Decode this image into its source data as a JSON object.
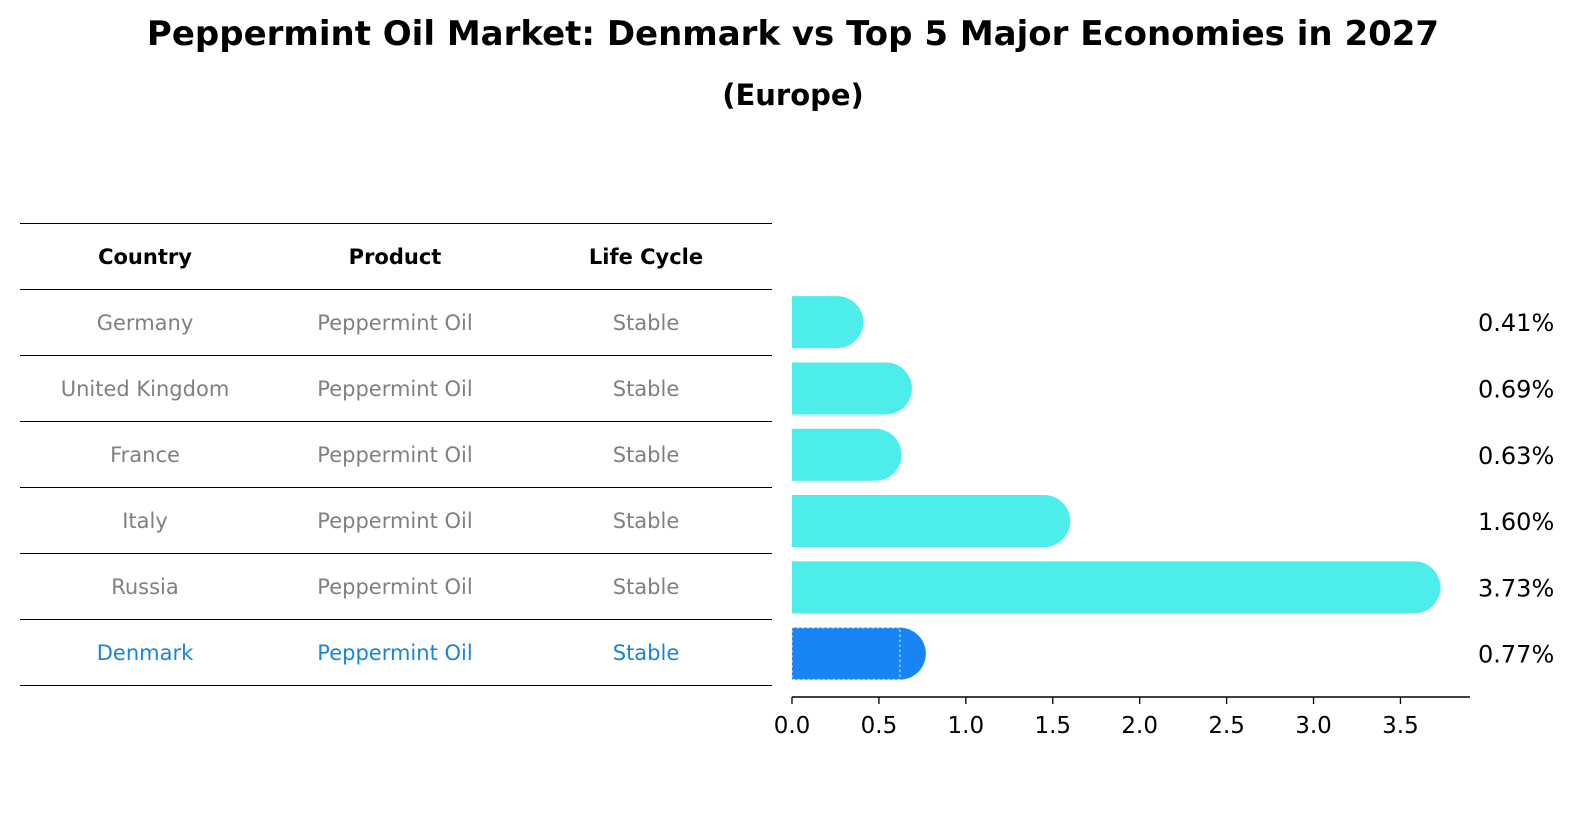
{
  "title": "Peppermint Oil Market: Denmark vs Top 5 Major Economies in 2027",
  "subtitle": "(Europe)",
  "table": {
    "headers": [
      "Country",
      "Product",
      "Life Cycle"
    ],
    "rows": [
      [
        "Germany",
        "Peppermint Oil",
        "Stable"
      ],
      [
        "United Kingdom",
        "Peppermint Oil",
        "Stable"
      ],
      [
        "France",
        "Peppermint Oil",
        "Stable"
      ],
      [
        "Italy",
        "Peppermint Oil",
        "Stable"
      ],
      [
        "Russia",
        "Peppermint Oil",
        "Stable"
      ],
      [
        "Denmark",
        "Peppermint Oil",
        "Stable"
      ]
    ]
  },
  "colors": {
    "bar": "#4deee9",
    "highlight": "#1985f5",
    "text_gray": "#808080",
    "text_highlight": "#1a85d6"
  },
  "chart_data": {
    "type": "bar",
    "orientation": "horizontal",
    "categories": [
      "Germany",
      "United Kingdom",
      "France",
      "Italy",
      "Russia",
      "Denmark"
    ],
    "values": [
      0.41,
      0.69,
      0.63,
      1.6,
      3.73,
      0.77
    ],
    "value_labels": [
      "0.41%",
      "0.69%",
      "0.63%",
      "1.60%",
      "3.73%",
      "0.77%"
    ],
    "highlight": "Denmark",
    "xlim": [
      0,
      3.9
    ],
    "xticks": [
      0.0,
      0.5,
      1.0,
      1.5,
      2.0,
      2.5,
      3.0,
      3.5
    ],
    "xtick_labels": [
      "0.0",
      "0.5",
      "1.0",
      "1.5",
      "2.0",
      "2.5",
      "3.0",
      "3.5"
    ]
  }
}
